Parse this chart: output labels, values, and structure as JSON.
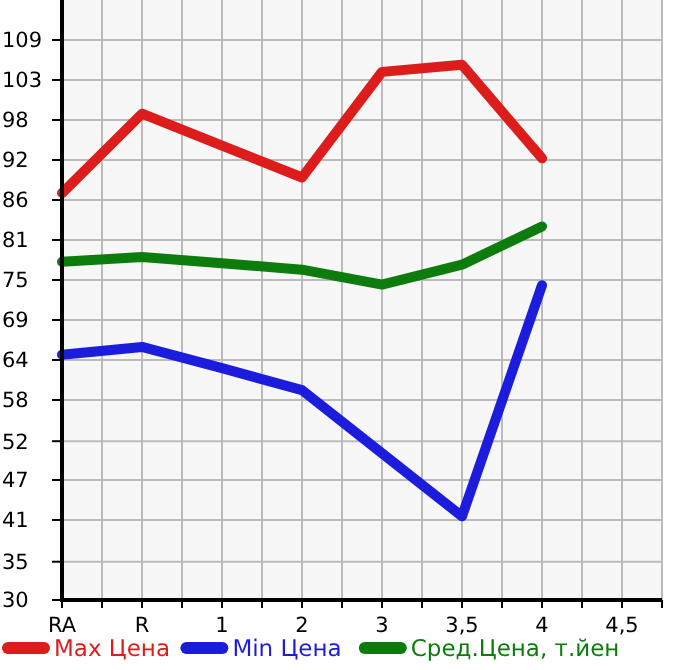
{
  "chart_data": {
    "type": "line",
    "categories": [
      "RA",
      "R",
      "1",
      "2",
      "3",
      "3,5",
      "4",
      "4,5"
    ],
    "series": [
      {
        "name": "Max Цена",
        "color": "#dd1c1c",
        "values": [
          87.4,
          98.6,
          94.1,
          89.6,
          104.5,
          105.5,
          92.3,
          null
        ]
      },
      {
        "name": "Min Цена",
        "color": "#1c1cdd",
        "values": [
          64.6,
          65.7,
          62.7,
          59.6,
          50.7,
          41.8,
          74.4,
          null
        ]
      },
      {
        "name": "Сред.Цена, т.йен",
        "color": "#0c7c0c",
        "values": [
          77.7,
          78.4,
          77.5,
          76.6,
          74.5,
          77.3,
          82.7,
          null
        ]
      }
    ],
    "ylim": [
      30,
      114.64
    ],
    "yticks": [
      30,
      {
        "value": 35.4,
        "label": "35"
      },
      {
        "value": 41.29,
        "label": "41"
      },
      {
        "value": 46.93,
        "label": "47"
      },
      {
        "value": 52.4,
        "label": "52"
      },
      {
        "value": 58.21,
        "label": "58"
      },
      {
        "value": 63.86,
        "label": "64"
      },
      {
        "value": 69.5,
        "label": "69"
      },
      {
        "value": 75.14,
        "label": "75"
      },
      {
        "value": 80.79,
        "label": "81"
      },
      {
        "value": 86.43,
        "label": "86"
      },
      {
        "value": 92.07,
        "label": "92"
      },
      {
        "value": 97.71,
        "label": "98"
      },
      {
        "value": 103.36,
        "label": "103"
      },
      109
    ],
    "grid": true,
    "legend": "bottom",
    "line_style": "solid",
    "marker": "none"
  }
}
